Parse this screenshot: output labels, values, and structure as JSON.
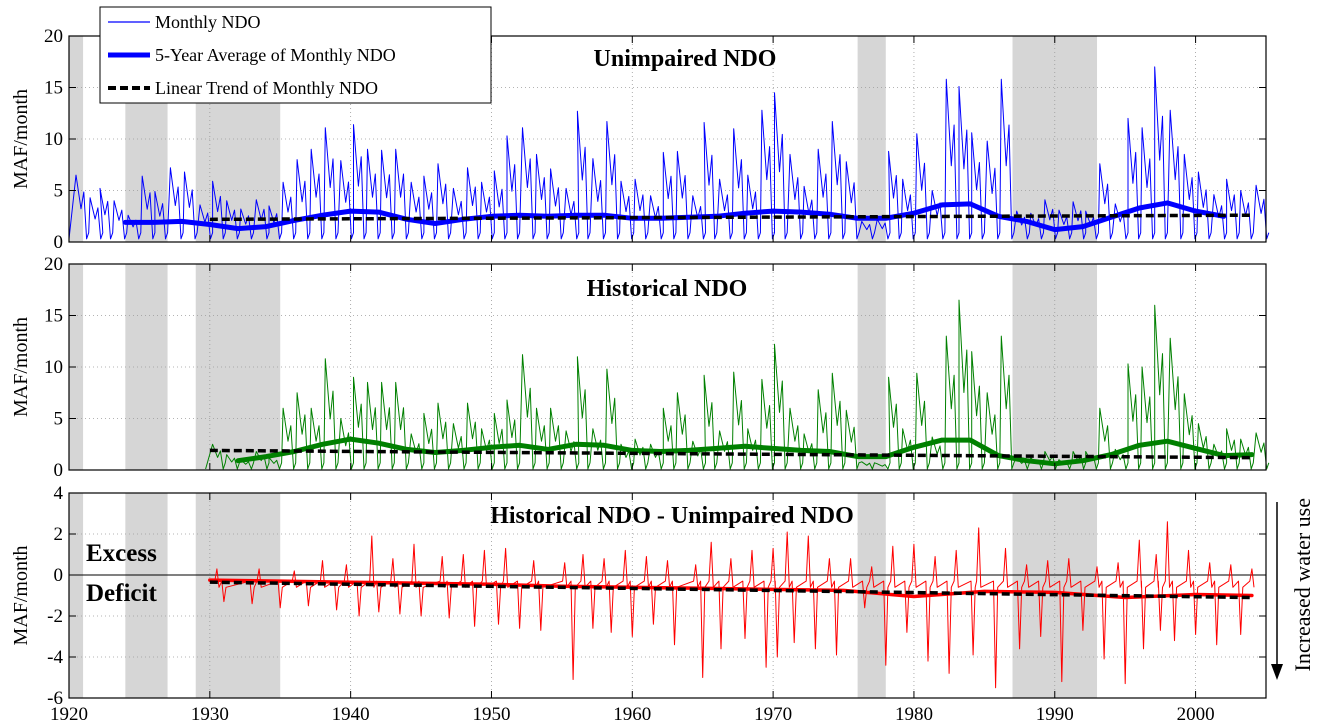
{
  "chart_data": [
    {
      "type": "line",
      "title": "Unimpaired NDO",
      "ylabel": "MAF/month",
      "ylim": [
        0,
        20
      ],
      "yticks": [
        "0",
        "5",
        "10",
        "15",
        "20"
      ],
      "xlim": [
        1920,
        2005
      ],
      "grid": true,
      "legend_position": "top-left",
      "series": [
        {
          "name": "Monthly NDO",
          "color": "#0000ff",
          "x": [
            1920.5,
            1921.5,
            1922.2,
            1923.2,
            1924.2,
            1925.2,
            1926.1,
            1927.2,
            1928.2,
            1929.3,
            1930.2,
            1931.2,
            1932.2,
            1933.3,
            1934.2,
            1935.2,
            1936.2,
            1937.2,
            1938.2,
            1939.3,
            1940.2,
            1941.2,
            1942.2,
            1943.2,
            1944.3,
            1945.2,
            1946.2,
            1947.3,
            1948.3,
            1949.3,
            1950.2,
            1951.1,
            1952.2,
            1953.2,
            1954.2,
            1955.3,
            1956.1,
            1957.2,
            1958.2,
            1959.2,
            1960.2,
            1961.3,
            1962.2,
            1963.2,
            1964.3,
            1965.1,
            1966.2,
            1967.2,
            1968.2,
            1969.2,
            1970.1,
            1971.2,
            1972.2,
            1973.2,
            1974.2,
            1975.2,
            1976.3,
            1977.4,
            1978.2,
            1979.2,
            1980.2,
            1981.3,
            1982.3,
            1983.2,
            1984.1,
            1985.2,
            1986.2,
            1987.3,
            1988.3,
            1989.3,
            1990.3,
            1991.3,
            1992.2,
            1993.2,
            1994.3,
            1995.2,
            1996.2,
            1997.1,
            1998.2,
            1999.2,
            2000.2,
            2001.3,
            2002.2,
            2003.2,
            2004.3
          ],
          "y": [
            6.5,
            4.3,
            5.2,
            4.0,
            2.6,
            6.4,
            4.9,
            7.2,
            6.8,
            3.6,
            5.9,
            4.0,
            3.2,
            4.1,
            3.5,
            5.8,
            8.0,
            9.0,
            11.1,
            7.9,
            11.4,
            9.0,
            8.9,
            9.0,
            5.8,
            6.4,
            7.6,
            5.2,
            7.2,
            5.8,
            6.9,
            10.3,
            11.1,
            8.5,
            7.1,
            5.2,
            12.7,
            8.1,
            11.7,
            5.9,
            6.1,
            4.5,
            8.7,
            8.8,
            4.5,
            11.6,
            6.1,
            11.0,
            6.5,
            12.8,
            14.5,
            8.5,
            5.4,
            9.0,
            11.7,
            7.8,
            2.0,
            2.2,
            8.8,
            6.1,
            10.5,
            5.0,
            15.8,
            15.1,
            10.6,
            9.8,
            15.8,
            3.0,
            2.8,
            4.1,
            3.1,
            3.9,
            3.0,
            7.6,
            3.7,
            12.0,
            11.1,
            17.0,
            12.8,
            8.5,
            6.8,
            4.6,
            6.1,
            5.0,
            5.5
          ],
          "baseline": 0.3
        },
        {
          "name": "5-Year Average of Monthly NDO",
          "color": "#0000ff",
          "x": [
            1924,
            1926,
            1928,
            1930,
            1932,
            1934,
            1936,
            1938,
            1940,
            1942,
            1944,
            1946,
            1948,
            1950,
            1952,
            1954,
            1956,
            1958,
            1960,
            1962,
            1964,
            1966,
            1968,
            1970,
            1972,
            1974,
            1976,
            1978,
            1980,
            1982,
            1984,
            1986,
            1988,
            1990,
            1992,
            1994,
            1996,
            1998,
            2000,
            2002
          ],
          "y": [
            1.9,
            1.9,
            2.0,
            1.7,
            1.3,
            1.5,
            2.1,
            2.6,
            3.0,
            2.9,
            2.2,
            1.8,
            2.2,
            2.5,
            2.6,
            2.5,
            2.6,
            2.6,
            2.3,
            2.3,
            2.4,
            2.5,
            2.8,
            3.0,
            2.9,
            2.7,
            2.3,
            2.3,
            2.8,
            3.6,
            3.7,
            2.5,
            2.0,
            1.2,
            1.5,
            2.4,
            3.3,
            3.8,
            3.0,
            2.5
          ]
        },
        {
          "name": "Linear Trend of Monthly NDO",
          "color": "#000000",
          "x": [
            1930,
            2004
          ],
          "y": [
            2.2,
            2.6
          ]
        }
      ]
    },
    {
      "type": "line",
      "title": "Historical NDO",
      "ylabel": "MAF/month",
      "ylim": [
        0,
        20
      ],
      "yticks": [
        "0",
        "5",
        "10",
        "15",
        "20"
      ],
      "xlim": [
        1920,
        2005
      ],
      "grid": true,
      "series": [
        {
          "color": "#008000",
          "x": [
            1930.2,
            1931.2,
            1932.2,
            1933.3,
            1934.2,
            1935.2,
            1936.2,
            1937.2,
            1938.2,
            1939.3,
            1940.2,
            1941.2,
            1942.2,
            1943.2,
            1944.3,
            1945.2,
            1946.2,
            1947.3,
            1948.3,
            1949.3,
            1950.2,
            1951.1,
            1952.2,
            1953.2,
            1954.2,
            1955.3,
            1956.1,
            1957.2,
            1958.2,
            1959.2,
            1960.2,
            1961.3,
            1962.2,
            1963.2,
            1964.3,
            1965.1,
            1966.2,
            1967.2,
            1968.2,
            1969.2,
            1970.1,
            1971.2,
            1972.2,
            1973.2,
            1974.2,
            1975.2,
            1976.3,
            1977.4,
            1978.2,
            1979.2,
            1980.2,
            1981.3,
            1982.3,
            1983.2,
            1984.1,
            1985.2,
            1986.2,
            1987.3,
            1988.3,
            1989.3,
            1990.3,
            1991.3,
            1992.2,
            1993.2,
            1994.3,
            1995.2,
            1996.2,
            1997.1,
            1998.2,
            1999.2,
            2000.2,
            2001.3,
            2002.2,
            2003.2,
            2004.3
          ],
          "y": [
            2.5,
            1.5,
            1.0,
            1.8,
            1.2,
            6.0,
            7.5,
            6.0,
            10.8,
            5.0,
            9.0,
            8.5,
            8.5,
            8.5,
            3.5,
            5.5,
            6.5,
            4.5,
            6.5,
            4.0,
            5.5,
            6.8,
            11.2,
            6.0,
            6.0,
            3.8,
            11.0,
            4.0,
            9.8,
            2.5,
            3.0,
            2.5,
            6.0,
            7.5,
            2.8,
            9.2,
            3.8,
            9.5,
            4.0,
            8.8,
            12.2,
            6.0,
            3.5,
            7.8,
            9.4,
            5.8,
            0.8,
            0.6,
            9.0,
            4.0,
            9.4,
            3.2,
            13.0,
            16.5,
            11.5,
            7.5,
            13.0,
            1.2,
            1.2,
            1.8,
            1.0,
            1.8,
            1.8,
            6.0,
            2.0,
            10.3,
            10.0,
            16.0,
            12.8,
            7.4,
            4.5,
            2.5,
            4.0,
            3.0,
            3.6
          ],
          "baseline": 0.1
        },
        {
          "color": "#008000",
          "x": [
            1932,
            1934,
            1936,
            1938,
            1940,
            1942,
            1944,
            1946,
            1948,
            1950,
            1952,
            1954,
            1956,
            1958,
            1960,
            1962,
            1964,
            1966,
            1968,
            1970,
            1972,
            1974,
            1976,
            1978,
            1980,
            1982,
            1984,
            1986,
            1988,
            1990,
            1992,
            1994,
            1996,
            1998,
            2000,
            2002,
            2004
          ],
          "y": [
            0.9,
            1.3,
            1.8,
            2.5,
            3.0,
            2.6,
            2.0,
            1.7,
            1.9,
            2.2,
            2.4,
            2.0,
            2.5,
            2.4,
            1.9,
            1.8,
            1.9,
            2.1,
            2.3,
            2.1,
            1.9,
            1.8,
            1.3,
            1.3,
            2.2,
            2.9,
            2.9,
            1.4,
            0.9,
            0.6,
            0.9,
            1.5,
            2.4,
            2.8,
            2.1,
            1.4,
            1.5
          ]
        },
        {
          "color": "#000000",
          "x": [
            1930,
            2004
          ],
          "y": [
            1.9,
            1.2
          ]
        }
      ]
    },
    {
      "type": "line",
      "title": "Historical NDO - Unimpaired NDO",
      "ylabel": "MAF/month",
      "ylim": [
        -6,
        4
      ],
      "yticks": [
        "-6",
        "-4",
        "-2",
        "0",
        "2",
        "4"
      ],
      "xlim": [
        1920,
        2005
      ],
      "xticks": [
        "1920",
        "1930",
        "1940",
        "1950",
        "1960",
        "1970",
        "1980",
        "1990",
        "2000"
      ],
      "grid": true,
      "annotations": [
        "Excess",
        "Deficit"
      ],
      "side_label": "Increased water use",
      "series": [
        {
          "color": "#ff0000",
          "x": [
            1931,
            1933,
            1935,
            1937,
            1939,
            1940.6,
            1942,
            1943.5,
            1945,
            1947,
            1948.8,
            1950.5,
            1952,
            1953.5,
            1955.8,
            1957.2,
            1958.5,
            1960,
            1961.5,
            1963,
            1965,
            1966.3,
            1968,
            1969.5,
            1970.3,
            1971.5,
            1973,
            1974.5,
            1976.5,
            1978,
            1979.5,
            1981,
            1982.5,
            1984.2,
            1985.8,
            1987.5,
            1989,
            1990.5,
            1992,
            1993.5,
            1995,
            1996.3,
            1997.5,
            1998.5,
            2000,
            2001.5,
            2003.2
          ],
          "y": [
            -1.3,
            -1.4,
            -1.6,
            -1.5,
            -1.7,
            -2.0,
            -1.8,
            -1.9,
            -2.0,
            -2.1,
            -2.5,
            -2.4,
            -2.6,
            -2.7,
            -5.1,
            -2.6,
            -2.8,
            -3.0,
            -2.4,
            -3.4,
            -5.0,
            -3.6,
            -3.1,
            -4.5,
            -4.0,
            -3.3,
            -3.6,
            -3.9,
            -1.6,
            -4.4,
            -2.8,
            -4.2,
            -4.8,
            -3.9,
            -5.5,
            -3.6,
            -3.0,
            -5.2,
            -2.7,
            -4.1,
            -5.3,
            -3.6,
            -2.7,
            -3.2,
            -2.9,
            -3.4,
            -2.9
          ],
          "x_max": [
            1930.5,
            1933.5,
            1936,
            1938,
            1939.7,
            1941.5,
            1943,
            1944.5,
            1946.5,
            1948,
            1949.5,
            1951,
            1953,
            1955.2,
            1956.5,
            1958,
            1959.5,
            1961,
            1962.5,
            1964.5,
            1965.6,
            1967,
            1968.5,
            1970,
            1971,
            1972.5,
            1974,
            1975.5,
            1977,
            1978.5,
            1980,
            1981.5,
            1983,
            1984.6,
            1986.5,
            1988,
            1989.5,
            1991,
            1993,
            1994.5,
            1996,
            1997.2,
            1998,
            1999.5,
            2001,
            2002.5,
            2004
          ],
          "y_max": [
            0.3,
            0.3,
            0.2,
            0.7,
            0.5,
            1.9,
            0.8,
            1.5,
            0.9,
            1.0,
            1.2,
            1.3,
            0.7,
            0.6,
            1.0,
            0.8,
            1.2,
            0.9,
            0.7,
            0.5,
            1.6,
            0.8,
            1.2,
            1.3,
            2.1,
            1.9,
            0.8,
            0.8,
            0.4,
            1.4,
            1.5,
            0.9,
            1.2,
            2.3,
            1.3,
            0.5,
            0.7,
            0.8,
            0.4,
            0.6,
            1.7,
            1.0,
            2.6,
            1.2,
            0.6,
            0.5,
            0.3
          ]
        },
        {
          "color": "#ff0000",
          "x": [
            1930,
            1935,
            1940,
            1945,
            1950,
            1955,
            1960,
            1965,
            1970,
            1975,
            1980,
            1985,
            1990,
            1995,
            2000,
            2004
          ],
          "y": [
            -0.25,
            -0.3,
            -0.35,
            -0.4,
            -0.45,
            -0.55,
            -0.6,
            -0.65,
            -0.7,
            -0.75,
            -1.05,
            -0.8,
            -0.85,
            -1.1,
            -0.95,
            -1.0
          ]
        },
        {
          "color": "#000000",
          "x": [
            1930,
            2004
          ],
          "y": [
            -0.35,
            -1.1
          ]
        }
      ]
    }
  ],
  "drought_periods": [
    [
      1920,
      1921
    ],
    [
      1924,
      1927
    ],
    [
      1929,
      1935
    ],
    [
      1976,
      1978
    ],
    [
      1987,
      1993
    ]
  ]
}
